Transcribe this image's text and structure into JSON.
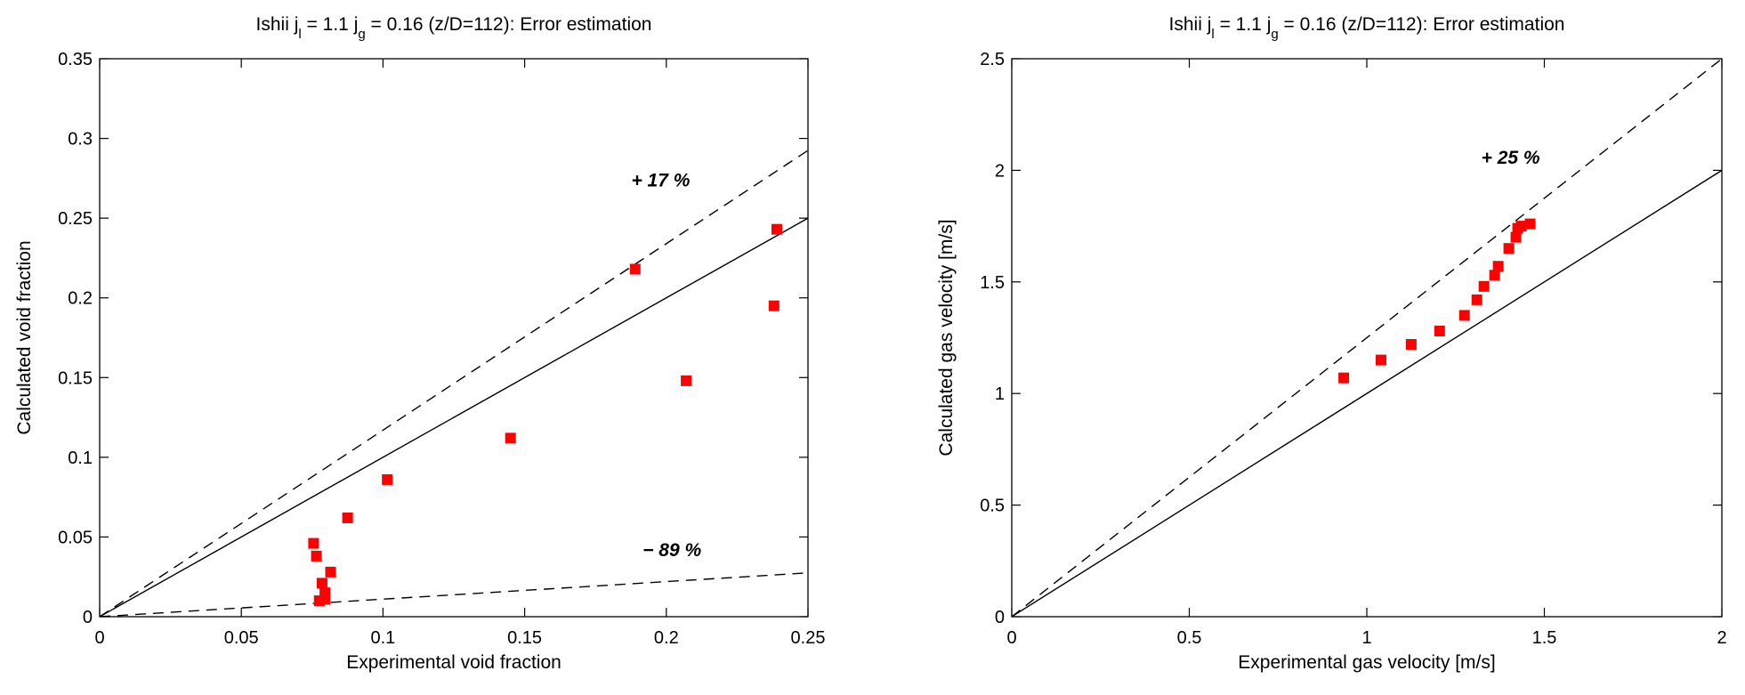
{
  "chart_data": [
    {
      "type": "scatter",
      "title": {
        "prefix": "Ishii j",
        "sub1": "l",
        "mid": " = 1.1 j",
        "sub2": "g",
        "suffix": " = 0.16 (z/D=112): Error estimation"
      },
      "xlabel": "Experimental void fraction",
      "ylabel": "Calculated void fraction",
      "xlim": [
        0,
        0.25
      ],
      "ylim": [
        0,
        0.35
      ],
      "xticks": [
        0,
        0.05,
        0.1,
        0.15,
        0.2,
        0.25
      ],
      "xtick_labels": [
        "0",
        "0.05",
        "0.1",
        "0.15",
        "0.2",
        "0.25"
      ],
      "yticks": [
        0,
        0.05,
        0.1,
        0.15,
        0.2,
        0.25,
        0.3,
        0.35
      ],
      "ytick_labels": [
        "0",
        "0.05",
        "0.1",
        "0.15",
        "0.2",
        "0.25",
        "0.3",
        "0.35"
      ],
      "grid": false,
      "marker_color": "#ff0000",
      "points": [
        {
          "x": 0.0755,
          "y": 0.046
        },
        {
          "x": 0.0765,
          "y": 0.038
        },
        {
          "x": 0.0775,
          "y": 0.01
        },
        {
          "x": 0.0785,
          "y": 0.021
        },
        {
          "x": 0.0795,
          "y": 0.015
        },
        {
          "x": 0.0795,
          "y": 0.011
        },
        {
          "x": 0.0815,
          "y": 0.028
        },
        {
          "x": 0.0875,
          "y": 0.062
        },
        {
          "x": 0.1015,
          "y": 0.086
        },
        {
          "x": 0.145,
          "y": 0.112
        },
        {
          "x": 0.189,
          "y": 0.218
        },
        {
          "x": 0.207,
          "y": 0.148
        },
        {
          "x": 0.238,
          "y": 0.195
        },
        {
          "x": 0.239,
          "y": 0.243
        }
      ],
      "lines": [
        {
          "style": "solid",
          "slope": 1.0
        },
        {
          "style": "dashed",
          "slope": 1.17
        },
        {
          "style": "dashed",
          "slope": 0.11
        }
      ],
      "annotations": [
        {
          "text": "+ 17 %",
          "x": 0.198,
          "y": 0.27
        },
        {
          "text": "− 89 %",
          "x": 0.202,
          "y": 0.038
        }
      ]
    },
    {
      "type": "scatter",
      "title": {
        "prefix": "Ishii j",
        "sub1": "l",
        "mid": " = 1.1 j",
        "sub2": "g",
        "suffix": " = 0.16 (z/D=112): Error estimation"
      },
      "xlabel": "Experimental gas velocity [m/s]",
      "ylabel": "Calculated gas velocity [m/s]",
      "xlim": [
        0,
        2
      ],
      "ylim": [
        0,
        2.5
      ],
      "xticks": [
        0,
        0.5,
        1,
        1.5,
        2
      ],
      "xtick_labels": [
        "0",
        "0.5",
        "1",
        "1.5",
        "2"
      ],
      "yticks": [
        0,
        0.5,
        1,
        1.5,
        2,
        2.5
      ],
      "ytick_labels": [
        "0",
        "0.5",
        "1",
        "1.5",
        "2",
        "2.5"
      ],
      "grid": false,
      "marker_color": "#ff0000",
      "points": [
        {
          "x": 0.935,
          "y": 1.07
        },
        {
          "x": 1.04,
          "y": 1.15
        },
        {
          "x": 1.125,
          "y": 1.22
        },
        {
          "x": 1.205,
          "y": 1.28
        },
        {
          "x": 1.275,
          "y": 1.35
        },
        {
          "x": 1.31,
          "y": 1.42
        },
        {
          "x": 1.33,
          "y": 1.48
        },
        {
          "x": 1.36,
          "y": 1.53
        },
        {
          "x": 1.37,
          "y": 1.57
        },
        {
          "x": 1.4,
          "y": 1.65
        },
        {
          "x": 1.42,
          "y": 1.7
        },
        {
          "x": 1.425,
          "y": 1.74
        },
        {
          "x": 1.435,
          "y": 1.75
        },
        {
          "x": 1.46,
          "y": 1.76
        }
      ],
      "lines": [
        {
          "style": "solid",
          "slope": 1.0
        },
        {
          "style": "dashed",
          "slope": 1.25
        }
      ],
      "annotations": [
        {
          "text": "+ 25 %",
          "x": 1.405,
          "y": 2.03
        }
      ]
    }
  ]
}
